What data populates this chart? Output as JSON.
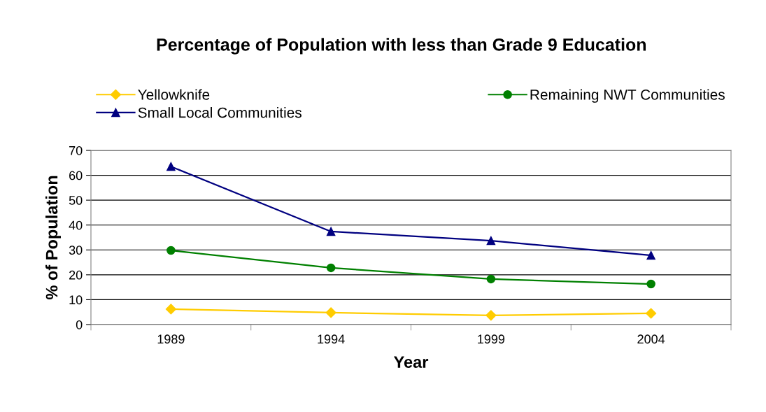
{
  "chart_data": {
    "type": "line",
    "title": "Percentage of Population with less than Grade 9 Education",
    "xlabel": "Year",
    "ylabel": "% of Population",
    "categories": [
      "1989",
      "1994",
      "1999",
      "2004"
    ],
    "series": [
      {
        "name": "Yellowknife",
        "color": "#ffcc00",
        "marker": "diamond",
        "values": [
          6.2,
          4.8,
          3.7,
          4.5
        ]
      },
      {
        "name": "Remaining NWT Communities",
        "color": "#008000",
        "marker": "circle",
        "values": [
          29.8,
          22.8,
          18.3,
          16.3
        ]
      },
      {
        "name": "Small Local Communities",
        "color": "#000080",
        "marker": "triangle",
        "values": [
          63.5,
          37.4,
          33.7,
          27.8
        ]
      }
    ],
    "ylim": [
      0,
      70
    ],
    "yticks": [
      0,
      10,
      20,
      30,
      40,
      50,
      60,
      70
    ],
    "grid": "y",
    "legend": "top",
    "line_style": "solid"
  }
}
